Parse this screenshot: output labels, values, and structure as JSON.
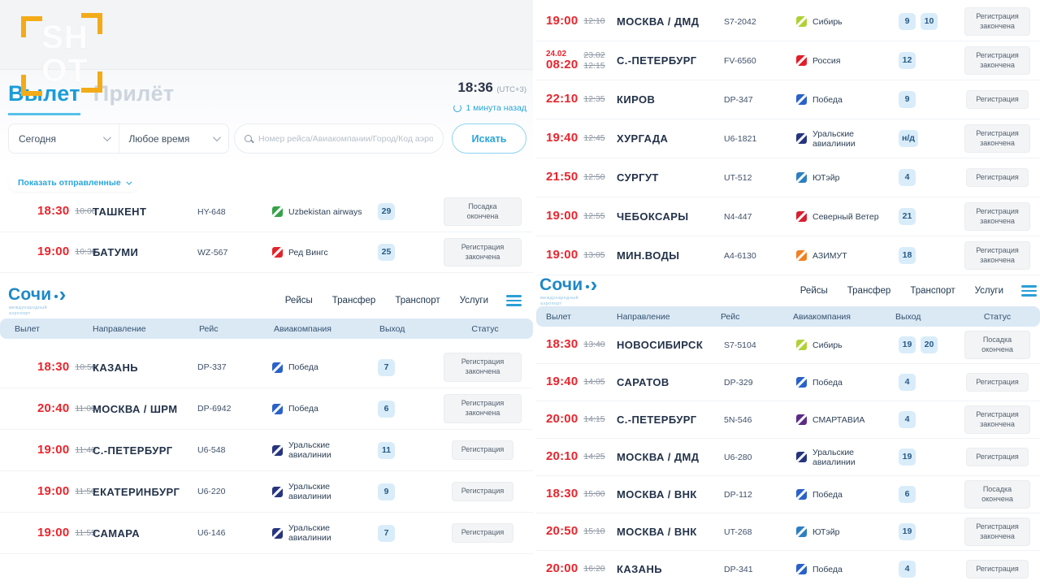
{
  "watermark": {
    "line1": "SH",
    "line2": "OT"
  },
  "left_panel": {
    "tabs": {
      "departure": "Вылет",
      "arrival": "Прилёт"
    },
    "clock": {
      "time": "18:36",
      "utc": "(UTC+3)",
      "updated": "1 минута назад"
    },
    "filters": {
      "date_filter": "Сегодня",
      "time_filter": "Любое время",
      "search_placeholder": "Номер рейса/Авиакомпании/Город/Код аэропорта",
      "search_button": "Искать"
    },
    "show_departed": "Показать отправленные",
    "top_flights": [
      {
        "time": "18:30",
        "time_old": "10:00",
        "destination": "ТАШКЕНТ",
        "flight_no": "HY-648",
        "airline": "Uzbekistan airways",
        "airline_color": "#35a24a",
        "gates": [
          "29"
        ],
        "status": "Посадка окончена"
      },
      {
        "time": "19:00",
        "time_old": "10:30",
        "destination": "БАТУМИ",
        "flight_no": "WZ-567",
        "airline": "Ред Вингс",
        "airline_color": "#e0262c",
        "gates": [
          "25"
        ],
        "status": "Регистрация закончена"
      }
    ],
    "site_header": {
      "logo": "Сочи",
      "logo_sub1": "международный",
      "logo_sub2": "аэропорт",
      "nav": [
        "Рейсы",
        "Трансфер",
        "Транспорт",
        "Услуги"
      ]
    },
    "table_headers": [
      "Вылет",
      "Направление",
      "Рейс",
      "Авиакомпания",
      "Выход",
      "Статус"
    ],
    "flights": [
      {
        "time": "18:30",
        "time_old": "10:50",
        "destination": "КАЗАНЬ",
        "flight_no": "DP-337",
        "airline": "Победа",
        "airline_color": "#2a62c9",
        "gates": [
          "7"
        ],
        "status": "Регистрация закончена"
      },
      {
        "time": "20:40",
        "time_old": "11:00",
        "destination": "МОСКВА / ШРМ",
        "flight_no": "DP-6942",
        "airline": "Победа",
        "airline_color": "#2a62c9",
        "gates": [
          "6"
        ],
        "status": "Регистрация закончена"
      },
      {
        "time": "19:00",
        "time_old": "11:40",
        "destination": "С.-ПЕТЕРБУРГ",
        "flight_no": "U6-548",
        "airline": "Уральские авиалинии",
        "airline_color": "#27357e",
        "gates": [
          "11"
        ],
        "status": "Регистрация"
      },
      {
        "time": "19:00",
        "time_old": "11:50",
        "destination": "ЕКАТЕРИНБУРГ",
        "flight_no": "U6-220",
        "airline": "Уральские авиалинии",
        "airline_color": "#27357e",
        "gates": [
          "9"
        ],
        "status": "Регистрация"
      },
      {
        "time": "19:00",
        "time_old": "11:55",
        "destination": "САМАРА",
        "flight_no": "U6-146",
        "airline": "Уральские авиалинии",
        "airline_color": "#27357e",
        "gates": [
          "7"
        ],
        "status": "Регистрация"
      }
    ]
  },
  "right_panel": {
    "top_flights": [
      {
        "time": "19:00",
        "time_old": "12:10",
        "destination": "МОСКВА / ДМД",
        "flight_no": "S7-2042",
        "airline": "Сибирь",
        "airline_color": "#b0d136",
        "gates": [
          "9",
          "10"
        ],
        "status": "Регистрация закончена"
      },
      {
        "time": "08:20",
        "date": "24.02",
        "time_old": "12:15",
        "date_old": "23.02",
        "destination": "С.-ПЕТЕРБУРГ",
        "flight_no": "FV-6560",
        "airline": "Россия",
        "airline_color": "#e21e2a",
        "gates": [
          "12"
        ],
        "status": "Регистрация закончена"
      },
      {
        "time": "22:10",
        "time_old": "12:35",
        "destination": "КИРОВ",
        "flight_no": "DP-347",
        "airline": "Победа",
        "airline_color": "#2a62c9",
        "gates": [
          "9"
        ],
        "status": "Регистрация"
      },
      {
        "time": "19:40",
        "time_old": "12:45",
        "destination": "ХУРГАДА",
        "flight_no": "U6-1821",
        "airline": "Уральские авиалинии",
        "airline_color": "#27357e",
        "gates": [
          "н/д"
        ],
        "status": "Регистрация закончена"
      },
      {
        "time": "21:50",
        "time_old": "12:50",
        "destination": "СУРГУТ",
        "flight_no": "UT-512",
        "airline": "ЮТэйр",
        "airline_color": "#2d7fc2",
        "gates": [
          "4"
        ],
        "status": "Регистрация"
      },
      {
        "time": "19:00",
        "time_old": "12:55",
        "destination": "ЧЕБОКСАРЫ",
        "flight_no": "N4-447",
        "airline": "Северный Ветер",
        "airline_color": "#d81f32",
        "gates": [
          "21"
        ],
        "status": "Регистрация закончена"
      },
      {
        "time": "19:00",
        "time_old": "13:05",
        "destination": "МИН.ВОДЫ",
        "flight_no": "A4-6130",
        "airline": "АЗИМУТ",
        "airline_color": "#f2801f",
        "gates": [
          "18"
        ],
        "status": "Регистрация закончена"
      }
    ],
    "site_header": {
      "logo": "Сочи",
      "logo_sub1": "международный",
      "logo_sub2": "аэропорт",
      "nav": [
        "Рейсы",
        "Трансфер",
        "Транспорт",
        "Услуги"
      ]
    },
    "table_headers": [
      "Вылет",
      "Направление",
      "Рейс",
      "Авиакомпания",
      "Выход",
      "Статус"
    ],
    "flights": [
      {
        "time": "18:30",
        "time_old": "13:40",
        "destination": "НОВОСИБИРСК",
        "flight_no": "S7-5104",
        "airline": "Сибирь",
        "airline_color": "#b0d136",
        "gates": [
          "19",
          "20"
        ],
        "status": "Посадка окончена"
      },
      {
        "time": "19:40",
        "time_old": "14:05",
        "destination": "САРАТОВ",
        "flight_no": "DP-329",
        "airline": "Победа",
        "airline_color": "#2a62c9",
        "gates": [
          "4"
        ],
        "status": "Регистрация"
      },
      {
        "time": "20:00",
        "time_old": "14:15",
        "destination": "С.-ПЕТЕРБУРГ",
        "flight_no": "5N-546",
        "airline": "СМАРТАВИА",
        "airline_color": "#5a2c87",
        "gates": [
          "4"
        ],
        "status": "Регистрация закончена"
      },
      {
        "time": "20:10",
        "time_old": "14:25",
        "destination": "МОСКВА / ДМД",
        "flight_no": "U6-280",
        "airline": "Уральские авиалинии",
        "airline_color": "#27357e",
        "gates": [
          "19"
        ],
        "status": "Регистрация"
      },
      {
        "time": "18:30",
        "time_old": "15:00",
        "destination": "МОСКВА / ВНК",
        "flight_no": "DP-112",
        "airline": "Победа",
        "airline_color": "#2a62c9",
        "gates": [
          "6"
        ],
        "status": "Посадка окончена"
      },
      {
        "time": "20:50",
        "time_old": "15:10",
        "destination": "МОСКВА / ВНК",
        "flight_no": "UT-268",
        "airline": "ЮТэйр",
        "airline_color": "#2d7fc2",
        "gates": [
          "19"
        ],
        "status": "Регистрация закончена"
      },
      {
        "time": "20:00",
        "time_old": "16:20",
        "destination": "КАЗАНЬ",
        "flight_no": "DP-341",
        "airline": "Победа",
        "airline_color": "#2a62c9",
        "gates": [
          "4"
        ],
        "status": "Регистрация"
      }
    ]
  }
}
